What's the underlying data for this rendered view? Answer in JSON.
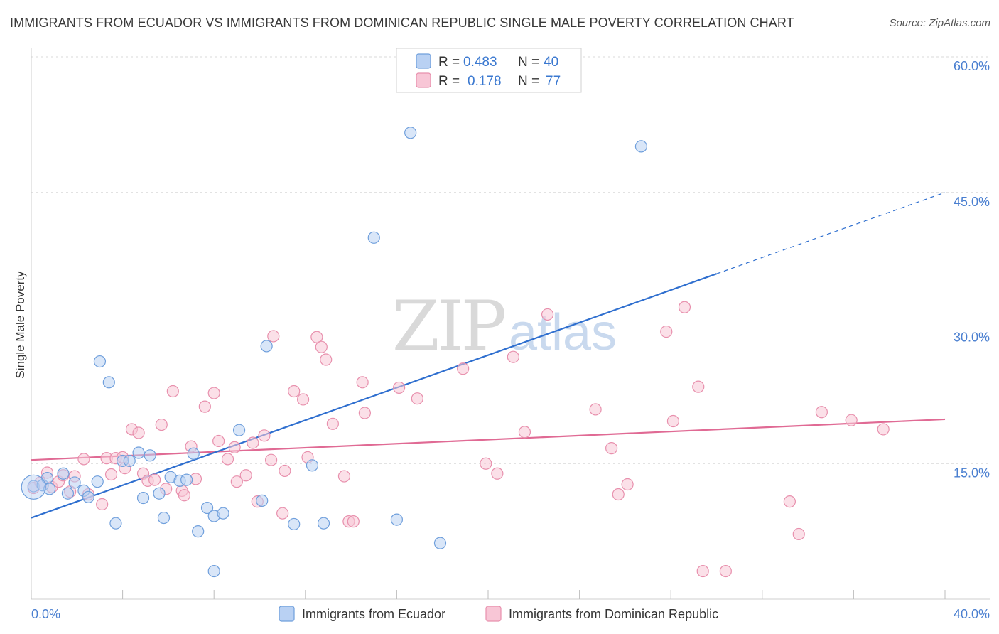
{
  "title": "IMMIGRANTS FROM ECUADOR VS IMMIGRANTS FROM DOMINICAN REPUBLIC SINGLE MALE POVERTY CORRELATION CHART",
  "source": "Source: ZipAtlas.com",
  "watermark": {
    "zip": "ZIP",
    "atlas": "atlas"
  },
  "colors": {
    "ecuador_fill": "#b9d1f3",
    "ecuador_stroke": "#6f9fdc",
    "ecuador_line": "#2f6fcf",
    "dominican_fill": "#f8c6d6",
    "dominican_stroke": "#e890ad",
    "dominican_line": "#e06a94",
    "tick_text": "#4a7fd0",
    "grid": "#d8d8d8"
  },
  "legend": {
    "ecuador": {
      "r_label": "R =",
      "r_value": "0.483",
      "n_label": "N =",
      "n_value": "40"
    },
    "dominican": {
      "r_label": "R =",
      "r_value": "0.178",
      "n_label": "N =",
      "n_value": "77"
    }
  },
  "chart_data": {
    "type": "scatter",
    "title": "IMMIGRANTS FROM ECUADOR VS IMMIGRANTS FROM DOMINICAN REPUBLIC SINGLE MALE POVERTY CORRELATION CHART",
    "xlabel": "",
    "ylabel": "Single Male Poverty",
    "xlim": [
      0,
      40
    ],
    "ylim": [
      0,
      60
    ],
    "x_tick_labels": [
      "0.0%",
      "40.0%"
    ],
    "y_ticks": [
      15,
      30,
      45,
      60
    ],
    "y_tick_labels": [
      "15.0%",
      "30.0%",
      "45.0%",
      "60.0%"
    ],
    "grid": true,
    "legend_position": "top-center",
    "series": [
      {
        "name": "Immigrants from Ecuador",
        "points": [
          [
            0.1,
            12.5
          ],
          [
            0.5,
            12.6
          ],
          [
            0.7,
            13.4
          ],
          [
            0.8,
            12.2
          ],
          [
            1.4,
            13.9
          ],
          [
            1.6,
            11.7
          ],
          [
            1.9,
            12.9
          ],
          [
            2.3,
            12.0
          ],
          [
            2.5,
            11.3
          ],
          [
            2.9,
            13.0
          ],
          [
            3.0,
            26.3
          ],
          [
            3.4,
            24.0
          ],
          [
            3.7,
            8.4
          ],
          [
            4.0,
            15.3
          ],
          [
            4.3,
            15.3
          ],
          [
            4.7,
            16.2
          ],
          [
            4.9,
            11.2
          ],
          [
            5.2,
            15.9
          ],
          [
            5.6,
            11.7
          ],
          [
            5.8,
            9.0
          ],
          [
            6.1,
            13.5
          ],
          [
            6.5,
            13.1
          ],
          [
            6.8,
            13.2
          ],
          [
            7.1,
            16.1
          ],
          [
            7.3,
            7.5
          ],
          [
            7.7,
            10.1
          ],
          [
            8.0,
            9.2
          ],
          [
            8.0,
            3.1
          ],
          [
            8.4,
            9.5
          ],
          [
            9.1,
            18.7
          ],
          [
            10.1,
            10.9
          ],
          [
            10.3,
            28.0
          ],
          [
            11.5,
            8.3
          ],
          [
            12.3,
            14.8
          ],
          [
            12.8,
            8.4
          ],
          [
            15.0,
            40.0
          ],
          [
            16.0,
            8.8
          ],
          [
            16.6,
            51.6
          ],
          [
            17.9,
            6.2
          ],
          [
            26.7,
            50.1
          ]
        ],
        "trend": {
          "x0": 0,
          "y0": 9.0,
          "x1": 30,
          "y1": 36.0,
          "dashed_to_x": 40,
          "dashed_to_y": 45.0
        }
      },
      {
        "name": "Immigrants from Dominican Republic",
        "points": [
          [
            0.1,
            12.3
          ],
          [
            0.4,
            12.9
          ],
          [
            0.7,
            14.0
          ],
          [
            0.9,
            12.4
          ],
          [
            1.2,
            13.0
          ],
          [
            1.4,
            13.7
          ],
          [
            1.7,
            11.9
          ],
          [
            1.9,
            13.6
          ],
          [
            2.3,
            15.5
          ],
          [
            2.5,
            11.6
          ],
          [
            3.1,
            10.5
          ],
          [
            3.3,
            15.6
          ],
          [
            3.5,
            13.8
          ],
          [
            3.7,
            15.6
          ],
          [
            4.0,
            15.7
          ],
          [
            4.1,
            14.5
          ],
          [
            4.4,
            18.8
          ],
          [
            4.7,
            18.4
          ],
          [
            4.9,
            13.9
          ],
          [
            5.1,
            13.1
          ],
          [
            5.4,
            13.2
          ],
          [
            5.7,
            19.3
          ],
          [
            5.9,
            12.2
          ],
          [
            6.2,
            23.0
          ],
          [
            6.6,
            12.0
          ],
          [
            6.7,
            11.5
          ],
          [
            7.0,
            16.9
          ],
          [
            7.2,
            13.3
          ],
          [
            7.6,
            21.3
          ],
          [
            8.0,
            22.8
          ],
          [
            8.2,
            17.5
          ],
          [
            8.6,
            15.5
          ],
          [
            8.9,
            16.8
          ],
          [
            9.0,
            13.0
          ],
          [
            9.4,
            13.7
          ],
          [
            9.7,
            17.3
          ],
          [
            9.9,
            10.8
          ],
          [
            10.2,
            18.1
          ],
          [
            10.5,
            15.4
          ],
          [
            10.6,
            29.1
          ],
          [
            11.0,
            9.5
          ],
          [
            11.1,
            14.2
          ],
          [
            11.5,
            23.0
          ],
          [
            11.9,
            22.1
          ],
          [
            12.1,
            15.7
          ],
          [
            12.5,
            29.0
          ],
          [
            12.7,
            27.9
          ],
          [
            12.9,
            26.5
          ],
          [
            13.2,
            19.4
          ],
          [
            13.7,
            13.6
          ],
          [
            13.9,
            8.6
          ],
          [
            14.1,
            8.6
          ],
          [
            14.5,
            24.0
          ],
          [
            14.6,
            20.6
          ],
          [
            16.1,
            23.4
          ],
          [
            16.9,
            22.2
          ],
          [
            18.9,
            25.5
          ],
          [
            19.9,
            15.0
          ],
          [
            20.4,
            13.9
          ],
          [
            21.1,
            26.8
          ],
          [
            21.6,
            18.5
          ],
          [
            22.6,
            31.5
          ],
          [
            24.7,
            21.0
          ],
          [
            25.4,
            16.7
          ],
          [
            25.7,
            11.6
          ],
          [
            26.1,
            12.7
          ],
          [
            27.8,
            29.6
          ],
          [
            28.1,
            19.7
          ],
          [
            28.6,
            32.3
          ],
          [
            29.2,
            23.5
          ],
          [
            29.4,
            3.1
          ],
          [
            30.4,
            3.1
          ],
          [
            33.2,
            10.8
          ],
          [
            33.6,
            7.2
          ],
          [
            34.6,
            20.7
          ],
          [
            35.9,
            19.8
          ],
          [
            37.3,
            18.8
          ]
        ],
        "trend": {
          "x0": 0,
          "y0": 15.4,
          "x1": 40,
          "y1": 19.9
        }
      }
    ]
  }
}
